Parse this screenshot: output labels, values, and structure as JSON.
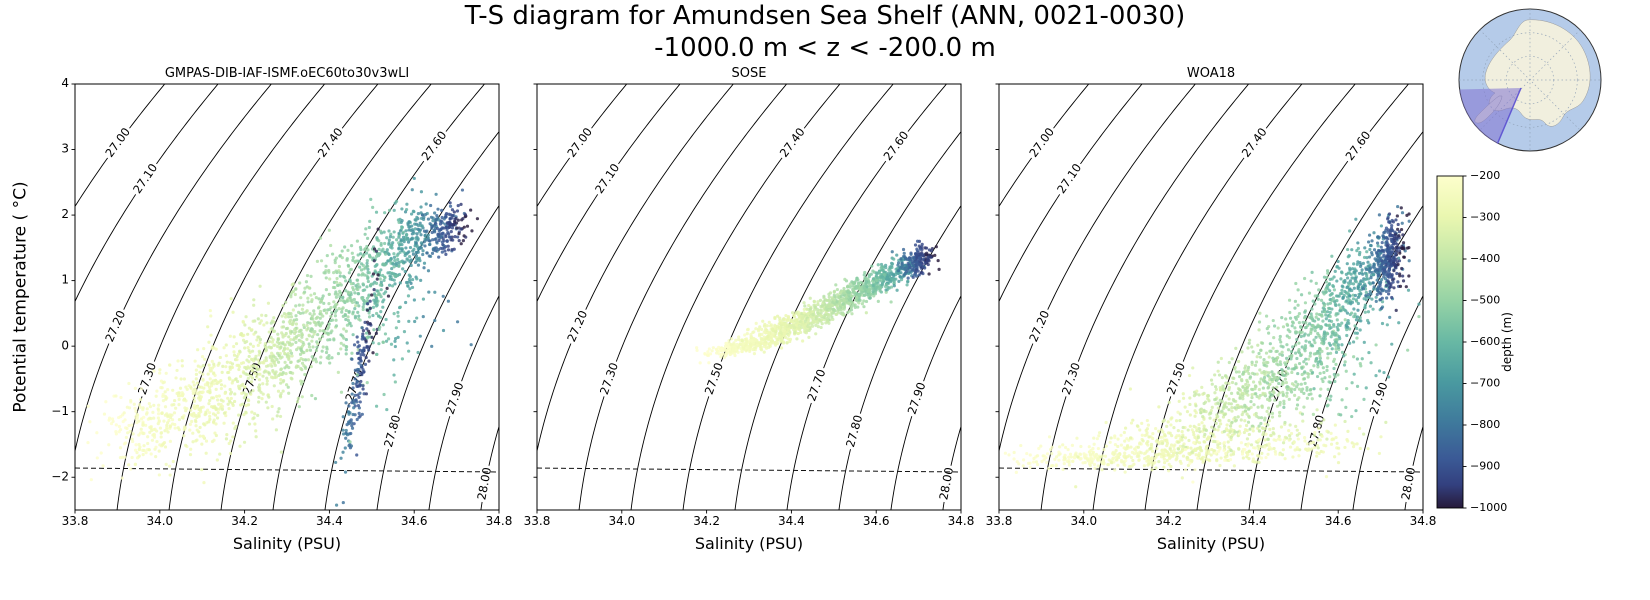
{
  "title": "T-S diagram for Amundsen Sea Shelf (ANN, 0021-0030)",
  "subtitle": "-1000.0 m < z < -200.0 m",
  "chart_data": {
    "type": "scatter",
    "xlabel": "Salinity (PSU)",
    "ylabel": "Potential temperature ( °C)",
    "xlim": [
      33.8,
      34.8
    ],
    "ylim": [
      -2.5,
      4
    ],
    "xticks": [
      33.8,
      34.0,
      34.2,
      34.4,
      34.6,
      34.8
    ],
    "yticks": [
      -2,
      -1,
      0,
      1,
      2,
      3,
      4
    ],
    "contours": {
      "levels": [
        27.0,
        27.1,
        27.2,
        27.3,
        27.4,
        27.5,
        27.6,
        27.7,
        27.8,
        27.9,
        28.0
      ],
      "label_t": [
        3.1,
        2.55,
        0.3,
        -0.5,
        3.1,
        -0.5,
        3.05,
        -0.6,
        -1.3,
        -0.8,
        -2.1
      ],
      "line_color": "#000000"
    },
    "freezing_line": {
      "style": "dashed",
      "t_left": -1.86,
      "t_right": -1.92
    },
    "cluster_fields": [
      "salinity",
      "theta",
      "sigma_s",
      "sigma_t",
      "rho",
      "n",
      "depth_shallow",
      "depth_deep"
    ],
    "panels": [
      {
        "title": "GMPAS-DIB-IAF-ISMF.oEC60to30v3wLI",
        "clusters": [
          [
            34.05,
            -1.0,
            0.09,
            0.45,
            0.5,
            320,
            -200,
            -320
          ],
          [
            34.22,
            -0.35,
            0.09,
            0.55,
            0.6,
            380,
            -240,
            -420
          ],
          [
            34.36,
            0.35,
            0.08,
            0.6,
            0.6,
            380,
            -340,
            -560
          ],
          [
            34.5,
            1.05,
            0.06,
            0.45,
            0.6,
            300,
            -440,
            -700
          ],
          [
            34.6,
            1.65,
            0.05,
            0.3,
            0.5,
            220,
            -550,
            -850
          ],
          [
            34.68,
            1.8,
            0.025,
            0.18,
            0.3,
            130,
            -820,
            -1000
          ],
          [
            34.47,
            -0.5,
            0.022,
            0.75,
            0.85,
            160,
            -760,
            -1000
          ],
          [
            34.58,
            0.3,
            0.06,
            0.6,
            0.4,
            70,
            -500,
            -800
          ],
          [
            33.97,
            -1.2,
            0.06,
            0.3,
            0.3,
            80,
            -200,
            -280
          ]
        ]
      },
      {
        "title": "SOSE",
        "clusters": [
          [
            34.26,
            -0.05,
            0.03,
            0.06,
            0.6,
            80,
            -200,
            -260
          ],
          [
            34.3,
            0.02,
            0.05,
            0.09,
            0.7,
            200,
            -200,
            -300
          ],
          [
            34.4,
            0.3,
            0.05,
            0.12,
            0.7,
            260,
            -250,
            -380
          ],
          [
            34.48,
            0.55,
            0.05,
            0.13,
            0.7,
            260,
            -300,
            -480
          ],
          [
            34.56,
            0.85,
            0.045,
            0.14,
            0.7,
            240,
            -400,
            -600
          ],
          [
            34.63,
            1.1,
            0.035,
            0.13,
            0.6,
            200,
            -500,
            -750
          ],
          [
            34.7,
            1.3,
            0.022,
            0.11,
            0.4,
            170,
            -800,
            -1000
          ]
        ]
      },
      {
        "title": "WOA18",
        "clusters": [
          [
            34.1,
            -1.7,
            0.16,
            0.08,
            0.2,
            280,
            -200,
            -300
          ],
          [
            34.25,
            -1.45,
            0.16,
            0.18,
            0.5,
            320,
            -220,
            -350
          ],
          [
            34.38,
            -0.8,
            0.12,
            0.4,
            0.7,
            420,
            -300,
            -500
          ],
          [
            34.52,
            0.1,
            0.1,
            0.5,
            0.75,
            400,
            -400,
            -650
          ],
          [
            34.63,
            0.9,
            0.06,
            0.45,
            0.7,
            300,
            -500,
            -800
          ],
          [
            34.72,
            1.35,
            0.02,
            0.28,
            0.3,
            320,
            -800,
            -1000
          ],
          [
            34.62,
            -0.5,
            0.07,
            0.4,
            0.3,
            40,
            -450,
            -650
          ],
          [
            34.5,
            -1.5,
            0.12,
            0.15,
            0.4,
            120,
            -200,
            -300
          ]
        ]
      }
    ],
    "colorbar": {
      "label": "depth (m)",
      "min": -1000,
      "max": -200,
      "ticks": [
        -200,
        -300,
        -400,
        -500,
        -600,
        -700,
        -800,
        -900,
        -1000
      ],
      "stops": [
        [
          0.0,
          "#fdfecc"
        ],
        [
          0.12,
          "#eaf7b0"
        ],
        [
          0.25,
          "#c3e7a9"
        ],
        [
          0.38,
          "#94d2a5"
        ],
        [
          0.5,
          "#68b8a4"
        ],
        [
          0.62,
          "#4a9aa0"
        ],
        [
          0.74,
          "#3f7a9c"
        ],
        [
          0.85,
          "#3b5a96"
        ],
        [
          0.93,
          "#33407f"
        ],
        [
          1.0,
          "#271a3a"
        ]
      ]
    }
  },
  "inset_map": {
    "ocean_color": "#b5cbe9",
    "land_color": "#f1efde",
    "region_color": "#7f73d2",
    "region_edge_color": "#5a4fd0",
    "graticule_color": "#8fa0b5"
  }
}
